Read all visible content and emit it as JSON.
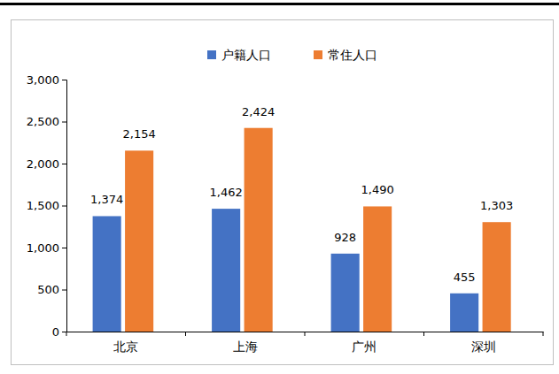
{
  "chart_data": {
    "type": "bar",
    "categories": [
      "北京",
      "上海",
      "广州",
      "深圳"
    ],
    "series": [
      {
        "name": "户籍人口",
        "color": "#4472c4",
        "values": [
          1374,
          1462,
          928,
          455
        ],
        "value_labels": [
          "1,374",
          "1,462",
          "928",
          "455"
        ]
      },
      {
        "name": "常住人口",
        "color": "#ed7d31",
        "values": [
          2154,
          2424,
          1490,
          1303
        ],
        "value_labels": [
          "2,154",
          "2,424",
          "1,490",
          "1,303"
        ]
      }
    ],
    "ylim": [
      0,
      3000
    ],
    "yticks": [
      0,
      500,
      {
        "value": 1000,
        "label": "1,000"
      },
      {
        "value": 1500,
        "label": "1,500"
      },
      {
        "value": 2000,
        "label": "2,000"
      },
      {
        "value": 2500,
        "label": "2,500"
      },
      {
        "value": 3000,
        "label": "3,000"
      }
    ],
    "grid": false,
    "legend": "top",
    "data_labels": true
  }
}
